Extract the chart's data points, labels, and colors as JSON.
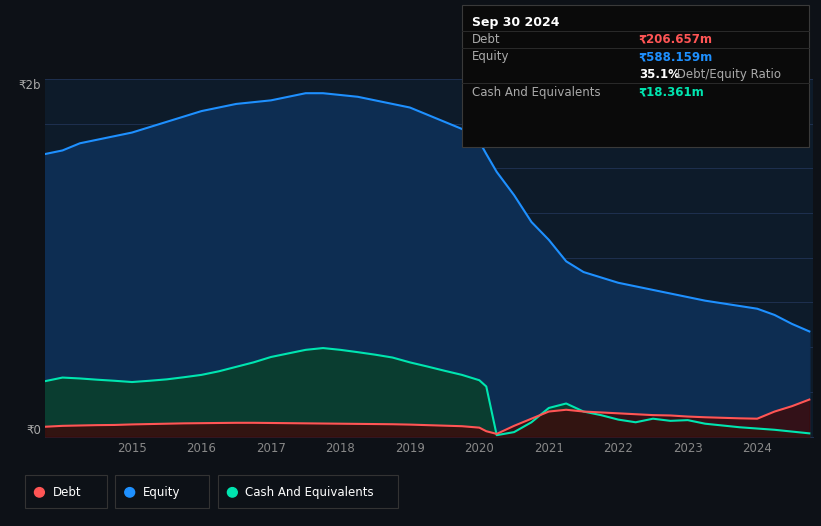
{
  "bg_color": "#0d1117",
  "plot_bg_color": "#0d1b2a",
  "grid_color": "#1e3050",
  "title_box": {
    "date": "Sep 30 2024",
    "debt_label": "Debt",
    "debt_value": "₹206.657m",
    "equity_label": "Equity",
    "equity_value": "₹588.159m",
    "ratio_bold": "35.1%",
    "ratio_text": " Debt/Equity Ratio",
    "cash_label": "Cash And Equivalents",
    "cash_value": "₹18.361m"
  },
  "y_label_top": "₹2b",
  "y_label_bottom": "₹0",
  "x_ticks": [
    2015,
    2016,
    2017,
    2018,
    2019,
    2020,
    2021,
    2022,
    2023,
    2024
  ],
  "equity_color": "#1e90ff",
  "debt_color": "#ff5555",
  "cash_color": "#00e5b0",
  "equity_fill": "#0d2d52",
  "cash_fill": "#0a3d30",
  "debt_fill": "#3d0a0a",
  "years": [
    2013.75,
    2014.0,
    2014.25,
    2014.5,
    2014.75,
    2015.0,
    2015.25,
    2015.5,
    2015.75,
    2016.0,
    2016.25,
    2016.5,
    2016.75,
    2017.0,
    2017.25,
    2017.5,
    2017.75,
    2018.0,
    2018.25,
    2018.5,
    2018.75,
    2019.0,
    2019.25,
    2019.5,
    2019.75,
    2020.0,
    2020.1,
    2020.25,
    2020.5,
    2020.75,
    2021.0,
    2021.25,
    2021.5,
    2021.75,
    2022.0,
    2022.25,
    2022.5,
    2022.75,
    2023.0,
    2023.25,
    2023.5,
    2023.75,
    2024.0,
    2024.25,
    2024.5,
    2024.75
  ],
  "equity": [
    1580,
    1600,
    1640,
    1660,
    1680,
    1700,
    1730,
    1760,
    1790,
    1820,
    1840,
    1860,
    1870,
    1880,
    1900,
    1920,
    1920,
    1910,
    1900,
    1880,
    1860,
    1840,
    1800,
    1760,
    1720,
    1650,
    1580,
    1480,
    1350,
    1200,
    1100,
    980,
    920,
    890,
    860,
    840,
    820,
    800,
    780,
    760,
    745,
    730,
    715,
    680,
    630,
    588
  ],
  "debt": [
    55,
    60,
    62,
    64,
    65,
    68,
    70,
    72,
    74,
    75,
    76,
    77,
    77,
    76,
    75,
    74,
    73,
    72,
    71,
    70,
    69,
    67,
    64,
    61,
    58,
    50,
    30,
    15,
    60,
    100,
    140,
    150,
    140,
    135,
    130,
    125,
    120,
    118,
    112,
    108,
    105,
    102,
    100,
    140,
    170,
    207
  ],
  "cash": [
    310,
    330,
    325,
    318,
    312,
    305,
    312,
    320,
    332,
    345,
    365,
    390,
    415,
    445,
    465,
    485,
    495,
    485,
    472,
    458,
    442,
    415,
    392,
    368,
    345,
    315,
    280,
    8,
    25,
    80,
    160,
    185,
    140,
    120,
    95,
    80,
    100,
    88,
    92,
    72,
    62,
    52,
    45,
    38,
    28,
    18
  ],
  "ylim_max": 2000,
  "ylim_min": 0,
  "legend_items": [
    "Debt",
    "Equity",
    "Cash And Equivalents"
  ]
}
